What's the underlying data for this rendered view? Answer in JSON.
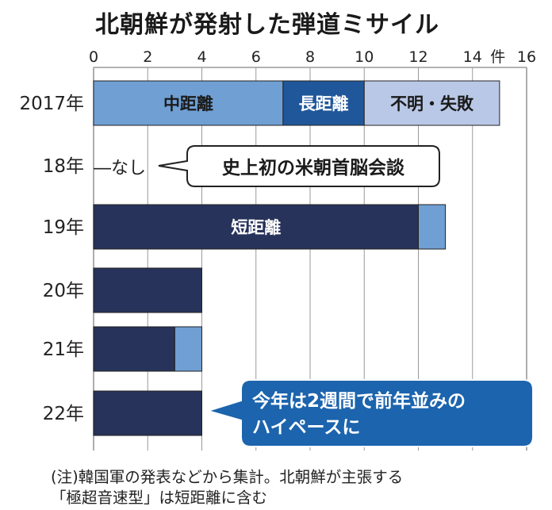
{
  "title": "北朝鮮が発射した弾道ミサイル",
  "colors": {
    "navy": "#27335a",
    "blue": "#6f9fd3",
    "mid_blue": "#20579a",
    "light": "#b9c8e6",
    "grid": "#9a9a9a",
    "callout_fill": "#1c64ad"
  },
  "chart_data": {
    "type": "bar",
    "orientation": "horizontal",
    "stacked": true,
    "xlim": [
      0,
      16
    ],
    "x_ticks": [
      0,
      2,
      4,
      6,
      8,
      10,
      12,
      14,
      16
    ],
    "x_unit": "件",
    "grid": true,
    "categories": [
      "2017年",
      "18年",
      "19年",
      "20年",
      "21年",
      "22年"
    ],
    "series": [
      {
        "name": "中距離",
        "color_key": "blue",
        "values": [
          7,
          0,
          0,
          0,
          0,
          0
        ]
      },
      {
        "name": "長距離",
        "color_key": "mid_blue",
        "values": [
          3,
          0,
          0,
          0,
          0,
          0
        ]
      },
      {
        "name": "不明・失敗",
        "color_key": "light",
        "values": [
          5,
          0,
          0,
          0,
          0,
          0
        ]
      },
      {
        "name": "短距離",
        "color_key": "navy",
        "values": [
          0,
          0,
          12,
          4,
          3,
          4
        ]
      },
      {
        "name": "",
        "color_key": "blue",
        "values": [
          0,
          0,
          1,
          0,
          1,
          0
        ]
      }
    ],
    "segment_labels": [
      {
        "category": "2017年",
        "series": "中距離",
        "text": "中距離"
      },
      {
        "category": "2017年",
        "series": "長距離",
        "text": "長距離"
      },
      {
        "category": "2017年",
        "series": "不明・失敗",
        "text": "不明・失敗"
      },
      {
        "category": "19年",
        "series": "短距離",
        "text": "短距離"
      }
    ],
    "annotations": {
      "none_label": "―なし",
      "callout_2018": "史上初の米朝首脳会談",
      "callout_2022_line1": "今年は2週間で前年並みの",
      "callout_2022_line2": "ハイペースに"
    }
  },
  "notes": [
    "(注)韓国軍の発表などから集計。北朝鮮が主張する",
    "「極超音速型」は短距離に含む"
  ]
}
